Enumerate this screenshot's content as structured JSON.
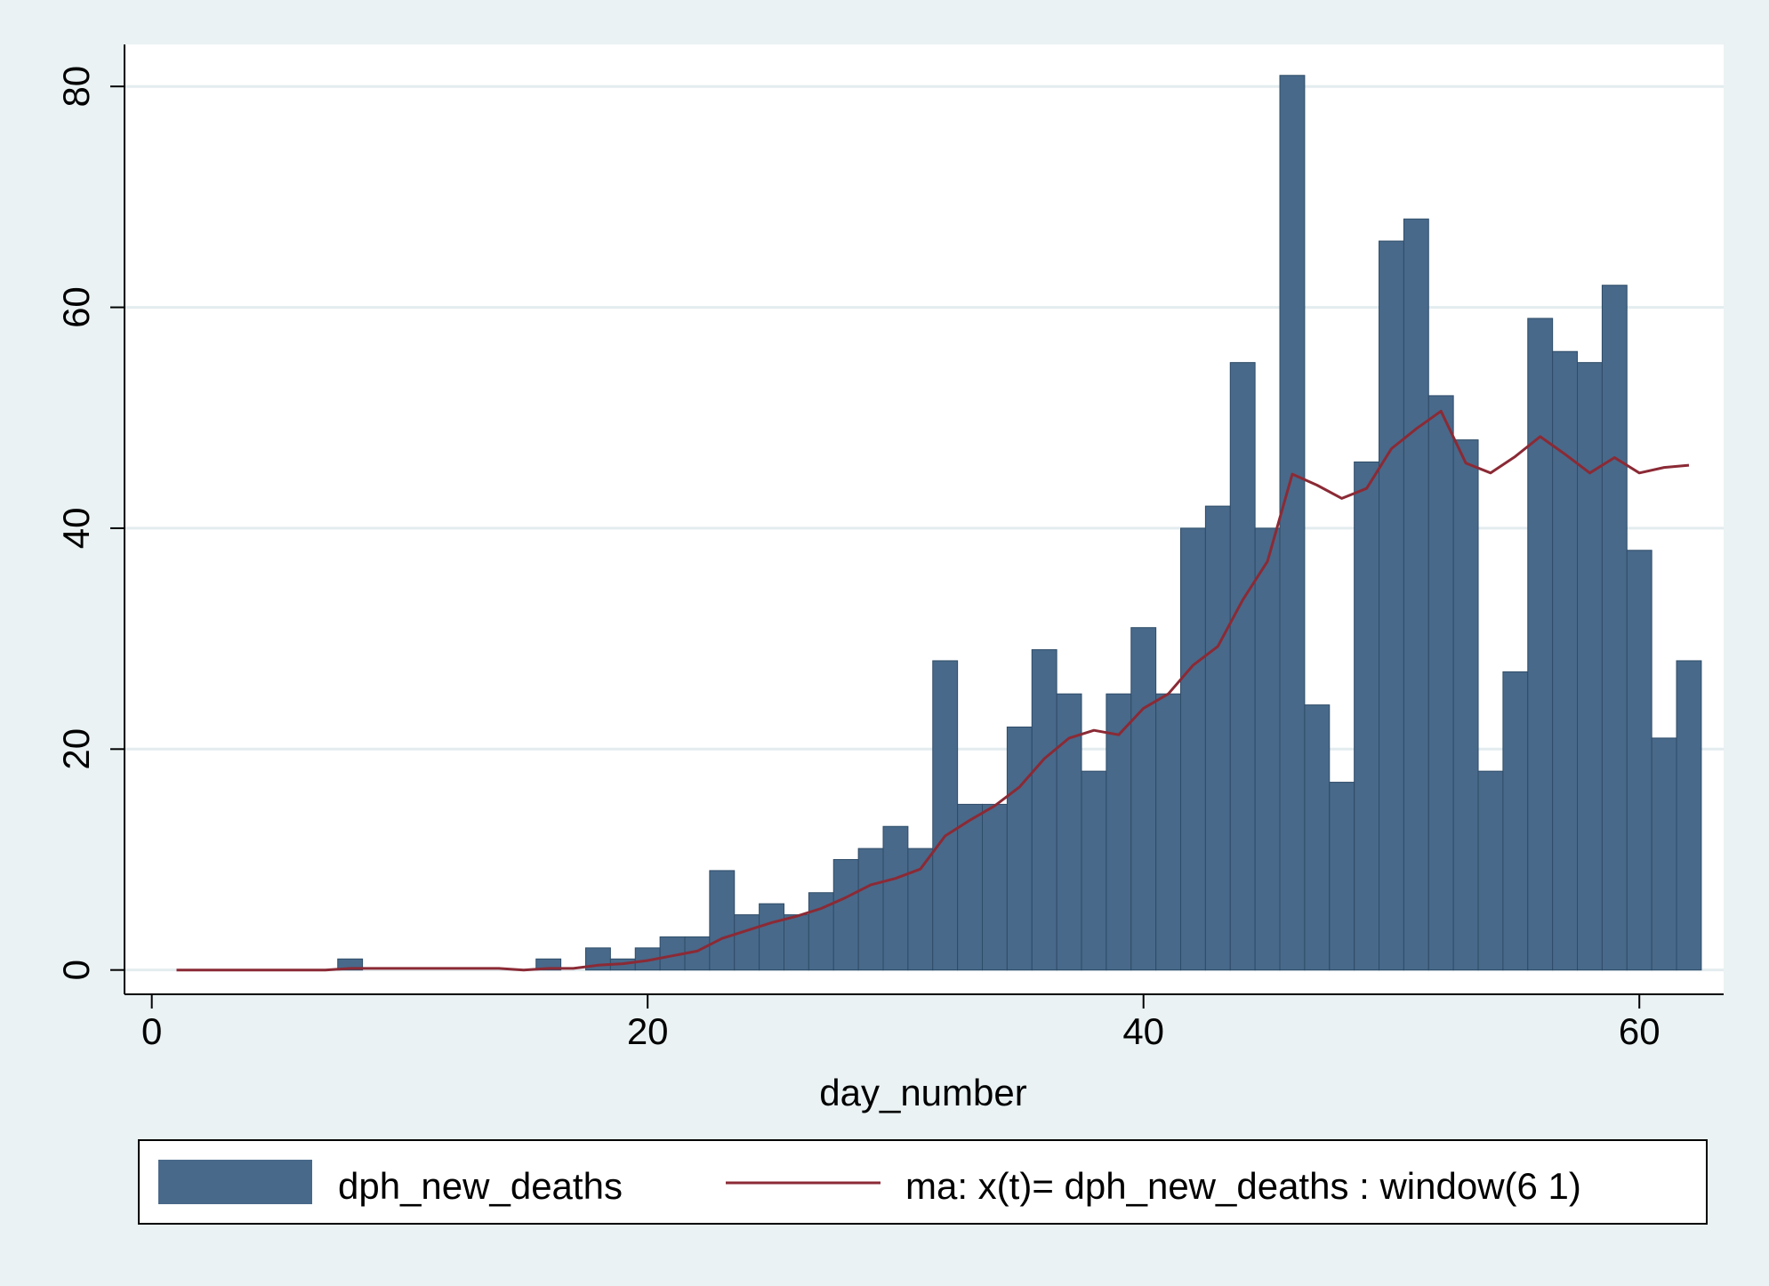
{
  "chart_data": {
    "type": "bar",
    "title": "",
    "xlabel": "day_number",
    "ylabel": "",
    "xlim": [
      -1.1,
      63.4
    ],
    "ylim": [
      -2.2,
      83.8
    ],
    "xticks": [
      {
        "value": 0,
        "label": "0"
      },
      {
        "value": 20,
        "label": "20"
      },
      {
        "value": 40,
        "label": "40"
      },
      {
        "value": 60,
        "label": "60"
      }
    ],
    "yticks": [
      {
        "value": 0,
        "label": "0"
      },
      {
        "value": 20,
        "label": "20"
      },
      {
        "value": 40,
        "label": "40"
      },
      {
        "value": 60,
        "label": "60"
      },
      {
        "value": 80,
        "label": "80"
      }
    ],
    "grid": true,
    "legend_position": "bottom",
    "colors": {
      "bars": "#48698a",
      "bar_edge": "#2f4c68",
      "line": "#8b2a35",
      "plot_background": "#ffffff",
      "outer_background": "#eaf2f3",
      "grid": "#e3ecef"
    },
    "series": [
      {
        "name": "dph_new_deaths",
        "type": "bar",
        "x": [
          1,
          2,
          3,
          4,
          5,
          6,
          7,
          8,
          9,
          10,
          11,
          12,
          13,
          14,
          15,
          16,
          17,
          18,
          19,
          20,
          21,
          22,
          23,
          24,
          25,
          26,
          27,
          28,
          29,
          30,
          31,
          32,
          33,
          34,
          35,
          36,
          37,
          38,
          39,
          40,
          41,
          42,
          43,
          44,
          45,
          46,
          47,
          48,
          49,
          50,
          51,
          52,
          53,
          54,
          55,
          56,
          57,
          58,
          59,
          60,
          61,
          62
        ],
        "values": [
          0,
          0,
          0,
          0,
          0,
          0,
          0,
          1,
          0,
          0,
          0,
          0,
          0,
          0,
          0,
          1,
          0,
          2,
          1,
          2,
          3,
          3,
          9,
          5,
          6,
          5,
          7,
          10,
          11,
          13,
          11,
          28,
          15,
          15,
          22,
          29,
          25,
          18,
          25,
          31,
          25,
          40,
          42,
          55,
          40,
          81,
          24,
          17,
          46,
          66,
          68,
          52,
          48,
          18,
          27,
          59,
          56,
          55,
          62,
          38,
          21,
          28
        ]
      },
      {
        "name": "ma: x(t)= dph_new_deaths : window(6 1)",
        "type": "line",
        "x": [
          1,
          2,
          3,
          4,
          5,
          6,
          7,
          8,
          9,
          10,
          11,
          12,
          13,
          14,
          15,
          16,
          17,
          18,
          19,
          20,
          21,
          22,
          23,
          24,
          25,
          26,
          27,
          28,
          29,
          30,
          31,
          32,
          33,
          34,
          35,
          36,
          37,
          38,
          39,
          40,
          41,
          42,
          43,
          44,
          45,
          46,
          47,
          48,
          49,
          50,
          51,
          52,
          53,
          54,
          55,
          56,
          57,
          58,
          59,
          60,
          61,
          62
        ],
        "values": [
          0,
          0,
          0,
          0,
          0,
          0,
          0,
          0.14,
          0.14,
          0.14,
          0.14,
          0.14,
          0.14,
          0.14,
          0,
          0.14,
          0.14,
          0.43,
          0.57,
          0.86,
          1.29,
          1.71,
          2.86,
          3.57,
          4.29,
          4.86,
          5.57,
          6.57,
          7.71,
          8.29,
          9.14,
          12.14,
          13.57,
          14.86,
          16.57,
          19.14,
          21,
          21.7,
          21.3,
          23.7,
          25,
          27.6,
          29.3,
          33.5,
          37,
          44.9,
          43.9,
          42.7,
          43.6,
          47.2,
          49,
          50.6,
          45.9,
          45,
          46.5,
          48.3,
          46.7,
          45,
          46.4,
          45,
          45.5,
          45.7
        ]
      }
    ]
  }
}
